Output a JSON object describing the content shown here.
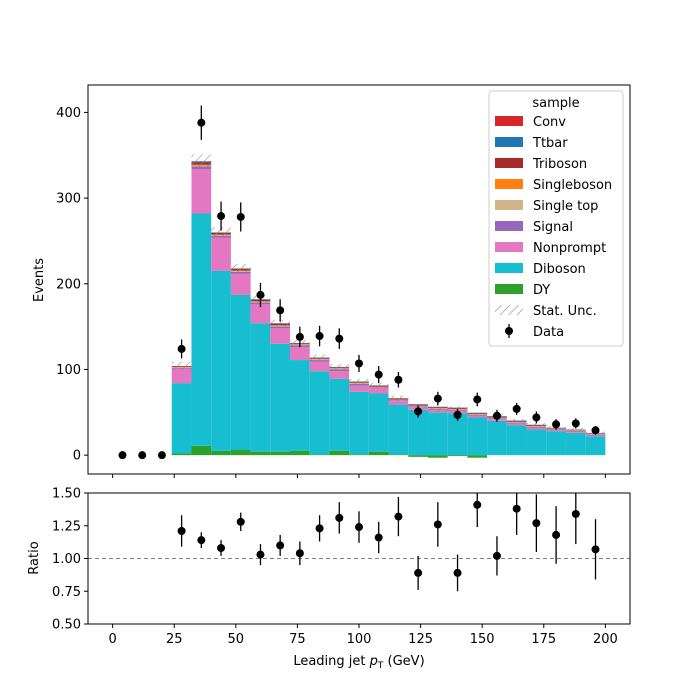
{
  "chart_data": [
    {
      "type": "bar",
      "subtype": "stacked-histogram",
      "ylabel": "Events",
      "xlim": [
        -10,
        210
      ],
      "ylim": [
        -22,
        432
      ],
      "yticks": [
        0,
        100,
        200,
        300,
        400
      ],
      "bin_edges": [
        0,
        8,
        16,
        24,
        32,
        40,
        48,
        56,
        64,
        72,
        80,
        88,
        96,
        104,
        112,
        120,
        128,
        136,
        144,
        152,
        160,
        168,
        176,
        184,
        192,
        200
      ],
      "legend": {
        "title": "sample",
        "placement": "top-right"
      },
      "series": [
        {
          "name": "DY",
          "color": "#2ca02c",
          "values": [
            0,
            0,
            0,
            2,
            11,
            5,
            6,
            4,
            4,
            5,
            1,
            5,
            1,
            4,
            1,
            -2,
            -3,
            -1,
            -3,
            0,
            0,
            0,
            0,
            0,
            0
          ]
        },
        {
          "name": "Diboson",
          "color": "#17becf",
          "values": [
            0,
            0,
            0,
            82,
            271,
            210,
            181,
            150,
            126,
            106,
            97,
            84,
            73,
            68,
            58,
            53,
            50,
            49,
            44,
            40,
            35,
            30,
            28,
            26,
            22
          ]
        },
        {
          "name": "Nonprompt",
          "color": "#e377c2",
          "values": [
            0,
            0,
            0,
            17,
            52,
            39,
            25,
            22,
            18,
            15,
            11,
            9,
            7,
            6,
            4,
            3,
            3,
            3,
            2,
            2,
            2,
            2,
            1,
            1,
            1
          ]
        },
        {
          "name": "Signal",
          "color": "#9467bd",
          "values": [
            0,
            0,
            0,
            1,
            3,
            2,
            2,
            2,
            2,
            2,
            2,
            2,
            2,
            1,
            1,
            1,
            1,
            1,
            1,
            1,
            1,
            1,
            1,
            1,
            1
          ]
        },
        {
          "name": "Single top",
          "color": "#d2b48c",
          "values": [
            0,
            0,
            0,
            0.5,
            1,
            1,
            1,
            1,
            1,
            1,
            1,
            1,
            1,
            0.5,
            0.5,
            0.5,
            0.5,
            0.5,
            0.5,
            0.5,
            0.5,
            0.5,
            0.5,
            0.5,
            0.5
          ]
        },
        {
          "name": "Singleboson",
          "color": "#ff7f0e",
          "values": [
            0,
            0,
            0,
            0.5,
            1,
            0.5,
            0.5,
            0.5,
            0.5,
            0.5,
            0.5,
            0.5,
            0.5,
            0.5,
            0.5,
            0.5,
            0.5,
            0.5,
            0.5,
            0.5,
            0.5,
            0.5,
            0.5,
            0.5,
            0.5
          ]
        },
        {
          "name": "Triboson",
          "color": "#a52a2a",
          "values": [
            0,
            0,
            0,
            1,
            3,
            2,
            2,
            2,
            2,
            1,
            1,
            1,
            1,
            1,
            1,
            1,
            1,
            1,
            1,
            1,
            1,
            1,
            0.5,
            0.5,
            0.5
          ]
        },
        {
          "name": "Ttbar",
          "color": "#1f77b4",
          "values": [
            0,
            0,
            0,
            0,
            1,
            0.5,
            0.5,
            0.5,
            0.5,
            0.5,
            0.5,
            0.5,
            0.5,
            0.5,
            0.5,
            0.5,
            0.5,
            0.5,
            0.5,
            0.5,
            0.5,
            0.5,
            0.5,
            0.5,
            0.5
          ]
        },
        {
          "name": "Conv",
          "color": "#d62728",
          "values": [
            0,
            0,
            0,
            0,
            0,
            0,
            0,
            0,
            0,
            0,
            0,
            0,
            0,
            0,
            0,
            0,
            0,
            0,
            0,
            0,
            0,
            0,
            0,
            0,
            0
          ]
        }
      ],
      "uncertainty": {
        "name": "Stat. Unc.",
        "values": [
          0,
          0,
          0,
          5,
          8,
          6,
          5,
          4.5,
          4,
          4,
          3.5,
          3.5,
          3,
          3,
          3,
          2.5,
          2.5,
          2.5,
          2,
          2,
          2,
          2,
          2,
          2,
          1.5
        ]
      },
      "data_points": {
        "name": "Data",
        "x": [
          4,
          12,
          20,
          28,
          36,
          44,
          52,
          60,
          68,
          76,
          84,
          92,
          100,
          108,
          116,
          124,
          132,
          140,
          148,
          156,
          164,
          172,
          180,
          188,
          196
        ],
        "y": [
          0,
          0,
          0,
          124,
          388,
          279,
          278,
          187,
          169,
          138,
          139,
          136,
          107,
          94,
          88,
          51,
          66,
          47,
          65,
          46,
          54,
          44,
          36,
          37,
          29
        ],
        "err": [
          0,
          0,
          0,
          11,
          20,
          17,
          17,
          14,
          13,
          12,
          12,
          12,
          10,
          10,
          9,
          7,
          8,
          7,
          8,
          7,
          7,
          7,
          6,
          6,
          5
        ]
      }
    },
    {
      "type": "scatter",
      "xlabel": "Leading jet  p_T (GeV)",
      "xlabel_main": "Leading jet  ",
      "xlabel_sym": "p",
      "xlabel_sub": "T",
      "xlabel_unit": " (GeV)",
      "ylabel": "Ratio",
      "xlim": [
        -10,
        210
      ],
      "ylim": [
        0.5,
        1.5
      ],
      "xticks": [
        0,
        25,
        50,
        75,
        100,
        125,
        150,
        175,
        200
      ],
      "yticks": [
        0.5,
        0.75,
        1.0,
        1.25,
        1.5
      ],
      "ytick_labels": [
        "0.50",
        "0.75",
        "1.00",
        "1.25",
        "1.50"
      ],
      "reference_line": 1.0,
      "x": [
        28,
        36,
        44,
        52,
        60,
        68,
        76,
        84,
        92,
        100,
        108,
        116,
        124,
        132,
        140,
        148,
        156,
        164,
        172,
        180,
        188,
        196
      ],
      "y": [
        1.21,
        1.14,
        1.08,
        1.28,
        1.03,
        1.1,
        1.04,
        1.23,
        1.31,
        1.24,
        1.16,
        1.32,
        0.89,
        1.26,
        0.89,
        1.41,
        1.02,
        1.38,
        1.27,
        1.18,
        1.34,
        1.07
      ],
      "err": [
        0.12,
        0.06,
        0.06,
        0.07,
        0.08,
        0.08,
        0.09,
        0.1,
        0.12,
        0.12,
        0.12,
        0.15,
        0.13,
        0.17,
        0.14,
        0.17,
        0.15,
        0.2,
        0.22,
        0.22,
        0.23,
        0.23
      ]
    }
  ]
}
